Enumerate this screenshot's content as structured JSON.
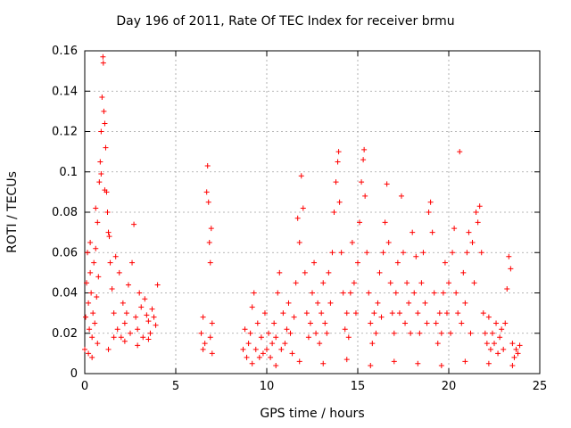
{
  "chart_data": {
    "type": "scatter",
    "title": "Day 196 of 2011, Rate Of TEC Index for receiver brmu",
    "xlabel": "GPS time / hours",
    "ylabel": "ROTI / TECUs",
    "xlim": [
      0,
      25
    ],
    "ylim": [
      0,
      0.16
    ],
    "xticks": [
      "0",
      "5",
      "10",
      "15",
      "20",
      "25"
    ],
    "yticks": [
      "0",
      "0.02",
      "0.04",
      "0.06",
      "0.08",
      "0.1",
      "0.12",
      "0.14",
      "0.16"
    ],
    "grid": true,
    "marker": "+",
    "color": "#ff0000",
    "series": [
      {
        "points": [
          [
            0.0,
            0.012
          ],
          [
            0.05,
            0.028
          ],
          [
            0.1,
            0.045
          ],
          [
            0.15,
            0.06
          ],
          [
            0.2,
            0.035
          ],
          [
            0.25,
            0.022
          ],
          [
            0.3,
            0.05
          ],
          [
            0.35,
            0.04
          ],
          [
            0.4,
            0.018
          ],
          [
            0.45,
            0.03
          ],
          [
            0.5,
            0.055
          ],
          [
            0.55,
            0.025
          ],
          [
            0.6,
            0.062
          ],
          [
            0.65,
            0.038
          ],
          [
            0.7,
            0.075
          ],
          [
            0.75,
            0.048
          ],
          [
            0.8,
            0.095
          ],
          [
            0.85,
            0.105
          ],
          [
            0.9,
            0.12
          ],
          [
            0.95,
            0.137
          ],
          [
            1.0,
            0.157
          ],
          [
            1.02,
            0.154
          ],
          [
            1.05,
            0.13
          ],
          [
            1.1,
            0.124
          ],
          [
            1.15,
            0.112
          ],
          [
            1.2,
            0.09
          ],
          [
            1.25,
            0.08
          ],
          [
            1.3,
            0.07
          ],
          [
            1.35,
            0.068
          ],
          [
            1.4,
            0.055
          ],
          [
            1.5,
            0.042
          ],
          [
            1.6,
            0.03
          ],
          [
            1.7,
            0.058
          ],
          [
            1.8,
            0.022
          ],
          [
            1.9,
            0.05
          ],
          [
            2.0,
            0.018
          ],
          [
            2.1,
            0.035
          ],
          [
            2.2,
            0.025
          ],
          [
            2.3,
            0.03
          ],
          [
            2.4,
            0.044
          ],
          [
            2.5,
            0.02
          ],
          [
            2.6,
            0.055
          ],
          [
            2.7,
            0.074
          ],
          [
            2.8,
            0.028
          ],
          [
            2.9,
            0.022
          ],
          [
            3.0,
            0.04
          ],
          [
            3.1,
            0.033
          ],
          [
            3.2,
            0.018
          ],
          [
            3.3,
            0.037
          ],
          [
            3.4,
            0.029
          ],
          [
            3.5,
            0.026
          ],
          [
            3.6,
            0.02
          ],
          [
            3.7,
            0.032
          ],
          [
            3.8,
            0.028
          ],
          [
            3.9,
            0.024
          ],
          [
            4.0,
            0.044
          ],
          [
            0.3,
            0.065
          ],
          [
            0.6,
            0.082
          ],
          [
            0.9,
            0.099
          ],
          [
            1.1,
            0.091
          ],
          [
            0.2,
            0.01
          ],
          [
            0.4,
            0.008
          ],
          [
            0.7,
            0.015
          ],
          [
            1.3,
            0.012
          ],
          [
            1.6,
            0.018
          ],
          [
            2.2,
            0.016
          ],
          [
            2.9,
            0.014
          ],
          [
            3.5,
            0.017
          ],
          [
            6.4,
            0.02
          ],
          [
            6.5,
            0.028
          ],
          [
            6.6,
            0.015
          ],
          [
            6.7,
            0.09
          ],
          [
            6.75,
            0.103
          ],
          [
            6.8,
            0.085
          ],
          [
            6.85,
            0.065
          ],
          [
            6.9,
            0.055
          ],
          [
            6.95,
            0.072
          ],
          [
            7.0,
            0.025
          ],
          [
            6.5,
            0.012
          ],
          [
            6.9,
            0.018
          ],
          [
            7.0,
            0.01
          ],
          [
            8.7,
            0.012
          ],
          [
            8.8,
            0.022
          ],
          [
            8.9,
            0.008
          ],
          [
            9.0,
            0.015
          ],
          [
            9.1,
            0.02
          ],
          [
            9.2,
            0.033
          ],
          [
            9.3,
            0.04
          ],
          [
            9.4,
            0.012
          ],
          [
            9.5,
            0.025
          ],
          [
            9.6,
            0.008
          ],
          [
            9.7,
            0.018
          ],
          [
            9.8,
            0.01
          ],
          [
            9.9,
            0.03
          ],
          [
            10.0,
            0.012
          ],
          [
            10.1,
            0.02
          ],
          [
            10.2,
            0.008
          ],
          [
            10.3,
            0.015
          ],
          [
            10.4,
            0.025
          ],
          [
            10.5,
            0.018
          ],
          [
            10.6,
            0.04
          ],
          [
            10.7,
            0.05
          ],
          [
            10.8,
            0.012
          ],
          [
            10.9,
            0.03
          ],
          [
            11.0,
            0.015
          ],
          [
            11.1,
            0.022
          ],
          [
            11.2,
            0.035
          ],
          [
            11.3,
            0.02
          ],
          [
            11.4,
            0.01
          ],
          [
            11.5,
            0.028
          ],
          [
            11.6,
            0.045
          ],
          [
            11.7,
            0.077
          ],
          [
            11.8,
            0.065
          ],
          [
            11.9,
            0.098
          ],
          [
            12.0,
            0.082
          ],
          [
            12.1,
            0.05
          ],
          [
            12.2,
            0.03
          ],
          [
            12.3,
            0.018
          ],
          [
            12.4,
            0.025
          ],
          [
            12.5,
            0.04
          ],
          [
            12.6,
            0.055
          ],
          [
            12.7,
            0.02
          ],
          [
            12.8,
            0.035
          ],
          [
            12.9,
            0.015
          ],
          [
            13.0,
            0.03
          ],
          [
            13.1,
            0.045
          ],
          [
            13.2,
            0.025
          ],
          [
            13.3,
            0.02
          ],
          [
            13.4,
            0.05
          ],
          [
            13.5,
            0.035
          ],
          [
            13.6,
            0.06
          ],
          [
            13.7,
            0.08
          ],
          [
            13.8,
            0.095
          ],
          [
            13.9,
            0.105
          ],
          [
            13.95,
            0.11
          ],
          [
            14.0,
            0.085
          ],
          [
            14.1,
            0.06
          ],
          [
            14.2,
            0.04
          ],
          [
            14.3,
            0.022
          ],
          [
            14.4,
            0.03
          ],
          [
            14.5,
            0.018
          ],
          [
            14.6,
            0.04
          ],
          [
            14.7,
            0.065
          ],
          [
            14.8,
            0.045
          ],
          [
            14.9,
            0.03
          ],
          [
            15.0,
            0.055
          ],
          [
            15.1,
            0.075
          ],
          [
            15.2,
            0.095
          ],
          [
            15.3,
            0.106
          ],
          [
            15.35,
            0.111
          ],
          [
            15.4,
            0.088
          ],
          [
            15.5,
            0.06
          ],
          [
            15.6,
            0.04
          ],
          [
            15.7,
            0.025
          ],
          [
            15.8,
            0.015
          ],
          [
            15.9,
            0.03
          ],
          [
            16.0,
            0.02
          ],
          [
            16.1,
            0.035
          ],
          [
            16.2,
            0.05
          ],
          [
            16.3,
            0.028
          ],
          [
            16.4,
            0.06
          ],
          [
            16.5,
            0.075
          ],
          [
            16.6,
            0.094
          ],
          [
            16.7,
            0.065
          ],
          [
            16.8,
            0.045
          ],
          [
            16.9,
            0.03
          ],
          [
            17.0,
            0.02
          ],
          [
            17.1,
            0.04
          ],
          [
            17.2,
            0.055
          ],
          [
            17.3,
            0.03
          ],
          [
            17.4,
            0.088
          ],
          [
            17.5,
            0.06
          ],
          [
            17.6,
            0.025
          ],
          [
            17.7,
            0.045
          ],
          [
            17.8,
            0.035
          ],
          [
            17.9,
            0.02
          ],
          [
            18.0,
            0.07
          ],
          [
            18.1,
            0.04
          ],
          [
            18.2,
            0.058
          ],
          [
            18.3,
            0.03
          ],
          [
            18.4,
            0.02
          ],
          [
            18.5,
            0.045
          ],
          [
            18.6,
            0.06
          ],
          [
            18.7,
            0.035
          ],
          [
            18.8,
            0.025
          ],
          [
            18.9,
            0.08
          ],
          [
            19.0,
            0.085
          ],
          [
            19.1,
            0.07
          ],
          [
            19.2,
            0.04
          ],
          [
            19.3,
            0.025
          ],
          [
            19.4,
            0.015
          ],
          [
            19.5,
            0.03
          ],
          [
            19.6,
            0.02
          ],
          [
            19.7,
            0.04
          ],
          [
            19.8,
            0.055
          ],
          [
            19.9,
            0.03
          ],
          [
            20.0,
            0.045
          ],
          [
            20.1,
            0.02
          ],
          [
            20.2,
            0.06
          ],
          [
            20.3,
            0.072
          ],
          [
            20.4,
            0.04
          ],
          [
            20.5,
            0.03
          ],
          [
            20.6,
            0.11
          ],
          [
            20.7,
            0.025
          ],
          [
            20.8,
            0.05
          ],
          [
            20.9,
            0.035
          ],
          [
            21.0,
            0.06
          ],
          [
            21.1,
            0.07
          ],
          [
            21.2,
            0.02
          ],
          [
            21.3,
            0.065
          ],
          [
            21.4,
            0.045
          ],
          [
            21.5,
            0.08
          ],
          [
            21.6,
            0.075
          ],
          [
            21.7,
            0.083
          ],
          [
            21.8,
            0.06
          ],
          [
            21.9,
            0.03
          ],
          [
            22.0,
            0.02
          ],
          [
            22.1,
            0.015
          ],
          [
            22.2,
            0.028
          ],
          [
            22.3,
            0.012
          ],
          [
            22.4,
            0.02
          ],
          [
            22.5,
            0.015
          ],
          [
            22.6,
            0.025
          ],
          [
            22.7,
            0.01
          ],
          [
            22.8,
            0.018
          ],
          [
            22.9,
            0.022
          ],
          [
            23.0,
            0.012
          ],
          [
            23.1,
            0.025
          ],
          [
            23.2,
            0.042
          ],
          [
            23.3,
            0.058
          ],
          [
            23.4,
            0.052
          ],
          [
            23.5,
            0.015
          ],
          [
            23.6,
            0.008
          ],
          [
            23.7,
            0.012
          ],
          [
            23.8,
            0.01
          ],
          [
            23.9,
            0.014
          ],
          [
            9.2,
            0.005
          ],
          [
            10.5,
            0.004
          ],
          [
            11.8,
            0.006
          ],
          [
            13.1,
            0.005
          ],
          [
            14.4,
            0.007
          ],
          [
            15.7,
            0.004
          ],
          [
            17.0,
            0.006
          ],
          [
            18.3,
            0.005
          ],
          [
            19.6,
            0.004
          ],
          [
            20.9,
            0.006
          ],
          [
            22.2,
            0.005
          ],
          [
            23.5,
            0.004
          ]
        ]
      }
    ]
  }
}
